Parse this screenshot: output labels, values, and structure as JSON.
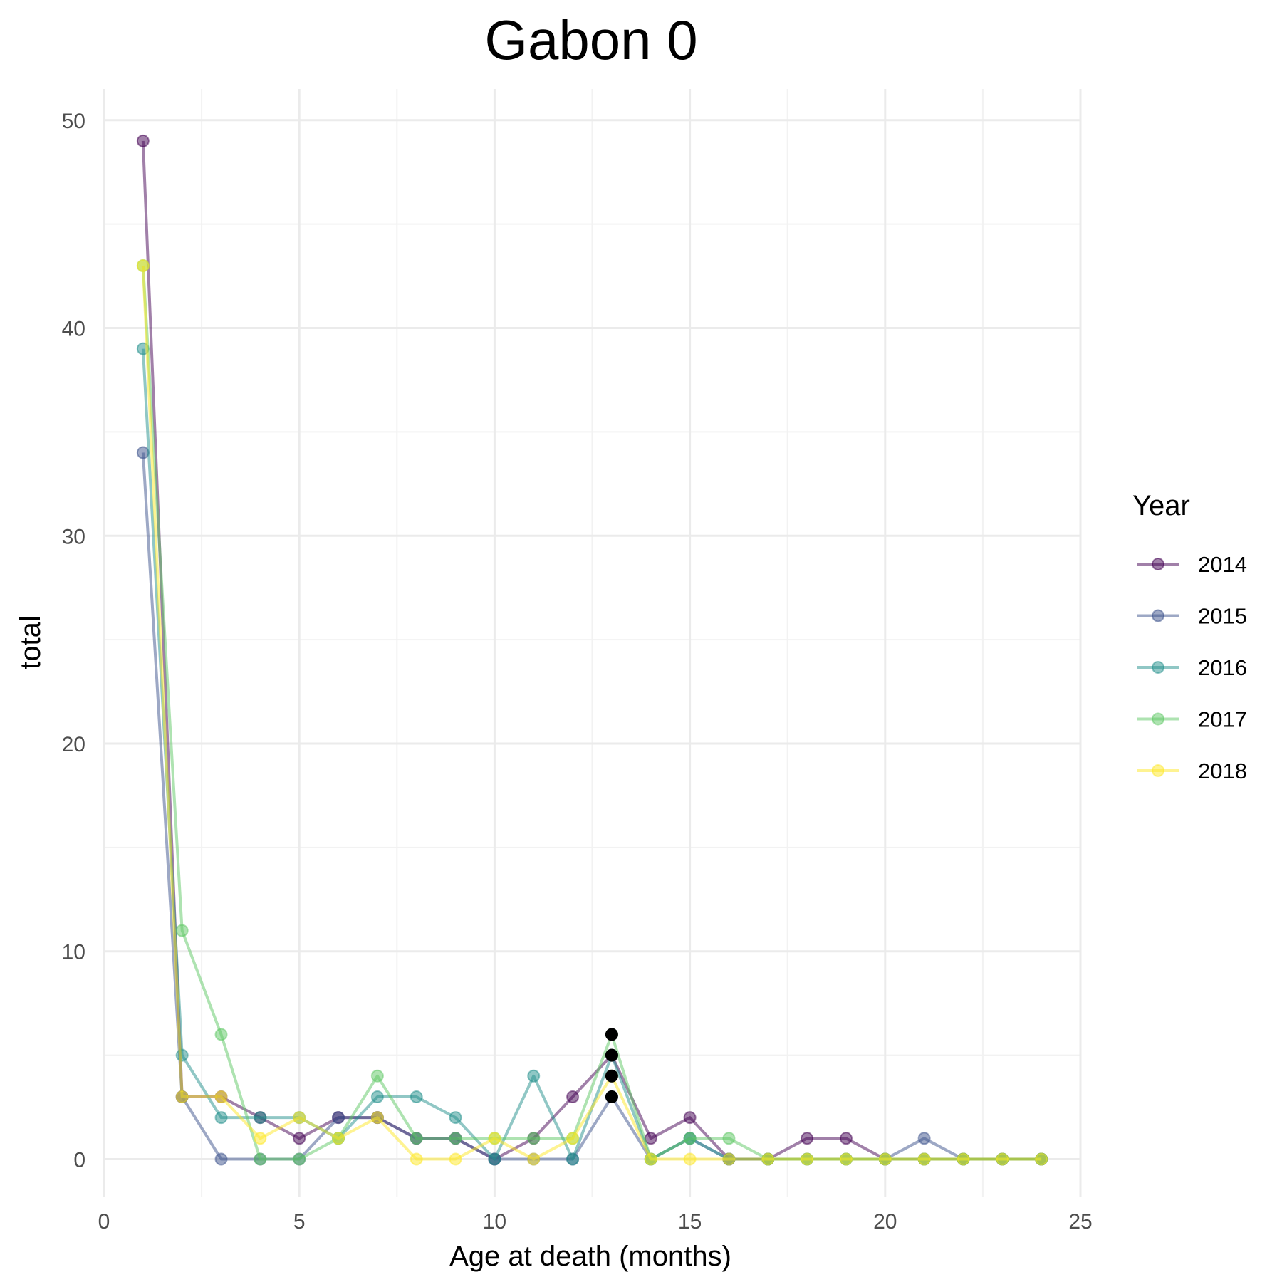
{
  "chart_data": {
    "type": "line",
    "title": "Gabon 0",
    "xlabel": "Age at death (months)",
    "ylabel": "total",
    "xlim": [
      0,
      25
    ],
    "ylim": [
      -1.8,
      51.5
    ],
    "x_ticks": [
      0,
      5,
      10,
      15,
      20,
      25
    ],
    "y_ticks": [
      0,
      10,
      20,
      30,
      40,
      50
    ],
    "grid": true,
    "legend": {
      "title": "Year",
      "position": "right"
    },
    "x": [
      1,
      2,
      3,
      4,
      5,
      6,
      7,
      8,
      9,
      10,
      11,
      12,
      13,
      14,
      15,
      16,
      17,
      18,
      19,
      20,
      21,
      22,
      23,
      24
    ],
    "series": [
      {
        "name": "2014",
        "color": "#440154",
        "values": [
          49,
          3,
          3,
          2,
          1,
          2,
          2,
          1,
          1,
          0,
          1,
          3,
          5,
          1,
          2,
          0,
          0,
          1,
          1,
          0,
          0,
          0,
          0,
          0
        ]
      },
      {
        "name": "2015",
        "color": "#3B528B",
        "values": [
          34,
          3,
          0,
          0,
          0,
          2,
          2,
          1,
          1,
          0,
          0,
          0,
          3,
          0,
          1,
          0,
          0,
          0,
          0,
          0,
          1,
          0,
          0,
          0
        ]
      },
      {
        "name": "2016",
        "color": "#21908C",
        "values": [
          39,
          5,
          2,
          2,
          2,
          1,
          3,
          3,
          2,
          0,
          4,
          0,
          5,
          0,
          1,
          0,
          0,
          0,
          0,
          0,
          0,
          0,
          0,
          0
        ]
      },
      {
        "name": "2017",
        "color": "#5DC863",
        "values": [
          43,
          11,
          6,
          0,
          0,
          1,
          4,
          1,
          1,
          1,
          1,
          1,
          6,
          0,
          1,
          1,
          0,
          0,
          0,
          0,
          0,
          0,
          0,
          0
        ]
      },
      {
        "name": "2018",
        "color": "#FDE725",
        "values": [
          43,
          3,
          3,
          1,
          2,
          1,
          2,
          0,
          0,
          1,
          0,
          1,
          4,
          0,
          0,
          0,
          0,
          0,
          0,
          0,
          0,
          0,
          0,
          0
        ]
      }
    ],
    "highlight_points": [
      {
        "x": 13,
        "y": 6
      },
      {
        "x": 13,
        "y": 5
      },
      {
        "x": 13,
        "y": 4
      },
      {
        "x": 13,
        "y": 3
      }
    ]
  }
}
